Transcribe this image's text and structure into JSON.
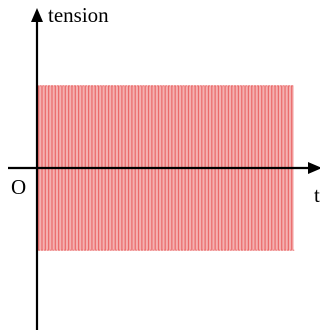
{
  "chart_data": {
    "type": "line",
    "title": "",
    "ylabel": "tension",
    "xlabel": "t",
    "origin_label": "O",
    "series": [
      {
        "color": "#e85a5a",
        "waveform": "square",
        "amplitude": 1,
        "cycles": 90,
        "t_start": 0,
        "t_end": 1
      }
    ],
    "xlim": [
      0,
      1.1
    ],
    "ylim": [
      -1.8,
      1.8
    ],
    "grid": false,
    "legend": "none",
    "axis_color": "#000000"
  }
}
